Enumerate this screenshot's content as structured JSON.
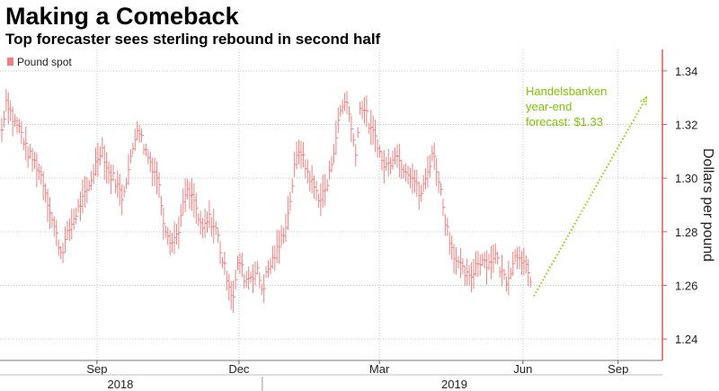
{
  "header": {
    "title": "Making a Comeback",
    "subtitle": "Top forecaster sees sterling rebound in second half"
  },
  "colors": {
    "bar": "#f08080",
    "forecast": "#8ccf00",
    "grid": "#c8c8c8",
    "axis": "#e05a5a"
  },
  "chart_data": {
    "type": "ohlc-bar",
    "legend": [
      "Pound spot"
    ],
    "legend_position": "top-left",
    "ylabel": "Dollars per pound",
    "ylim": [
      1.232,
      1.348
    ],
    "yticks": [
      1.24,
      1.26,
      1.28,
      1.3,
      1.32,
      1.34
    ],
    "ytick_labels": [
      "1.24",
      "1.26",
      "1.28",
      "1.30",
      "1.32",
      "1.34"
    ],
    "xlim_days": [
      0,
      413
    ],
    "xticks": [
      {
        "day": 61,
        "label": "Sep"
      },
      {
        "day": 152,
        "label": "Dec"
      },
      {
        "day": 242,
        "label": "Mar"
      },
      {
        "day": 334,
        "label": "Jun"
      },
      {
        "day": 395,
        "label": "Sep"
      }
    ],
    "year_labels": [
      {
        "day": 76,
        "label": "2018"
      },
      {
        "day": 290,
        "label": "2019"
      }
    ],
    "year_divider_day": 167,
    "x_start_date": "2018-07-01",
    "series": [
      {
        "name": "Pound spot",
        "anchors": [
          [
            0,
            1.318
          ],
          [
            3,
            1.33
          ],
          [
            7,
            1.322
          ],
          [
            12,
            1.318
          ],
          [
            16,
            1.31
          ],
          [
            21,
            1.306
          ],
          [
            26,
            1.3
          ],
          [
            32,
            1.285
          ],
          [
            38,
            1.272
          ],
          [
            44,
            1.282
          ],
          [
            50,
            1.29
          ],
          [
            55,
            1.295
          ],
          [
            60,
            1.305
          ],
          [
            64,
            1.312
          ],
          [
            68,
            1.302
          ],
          [
            72,
            1.3
          ],
          [
            77,
            1.293
          ],
          [
            82,
            1.305
          ],
          [
            87,
            1.32
          ],
          [
            91,
            1.312
          ],
          [
            96,
            1.305
          ],
          [
            100,
            1.3
          ],
          [
            104,
            1.283
          ],
          [
            109,
            1.276
          ],
          [
            113,
            1.28
          ],
          [
            118,
            1.295
          ],
          [
            123,
            1.292
          ],
          [
            128,
            1.28
          ],
          [
            133,
            1.285
          ],
          [
            138,
            1.28
          ],
          [
            141,
            1.27
          ],
          [
            145,
            1.262
          ],
          [
            148,
            1.255
          ],
          [
            152,
            1.27
          ],
          [
            156,
            1.262
          ],
          [
            160,
            1.264
          ],
          [
            164,
            1.265
          ],
          [
            167,
            1.258
          ],
          [
            170,
            1.265
          ],
          [
            174,
            1.27
          ],
          [
            178,
            1.275
          ],
          [
            183,
            1.285
          ],
          [
            188,
            1.305
          ],
          [
            191,
            1.312
          ],
          [
            194,
            1.305
          ],
          [
            199,
            1.298
          ],
          [
            204,
            1.292
          ],
          [
            209,
            1.298
          ],
          [
            214,
            1.315
          ],
          [
            217,
            1.325
          ],
          [
            221,
            1.33
          ],
          [
            224,
            1.318
          ],
          [
            227,
            1.31
          ],
          [
            230,
            1.328
          ],
          [
            233,
            1.325
          ],
          [
            236,
            1.318
          ],
          [
            240,
            1.315
          ],
          [
            244,
            1.305
          ],
          [
            248,
            1.305
          ],
          [
            252,
            1.31
          ],
          [
            256,
            1.305
          ],
          [
            260,
            1.303
          ],
          [
            264,
            1.3
          ],
          [
            268,
            1.293
          ],
          [
            272,
            1.3
          ],
          [
            276,
            1.31
          ],
          [
            280,
            1.3
          ],
          [
            284,
            1.285
          ],
          [
            288,
            1.275
          ],
          [
            292,
            1.268
          ],
          [
            296,
            1.265
          ],
          [
            300,
            1.262
          ],
          [
            304,
            1.268
          ],
          [
            308,
            1.27
          ],
          [
            312,
            1.268
          ],
          [
            316,
            1.272
          ],
          [
            320,
            1.265
          ],
          [
            324,
            1.262
          ],
          [
            328,
            1.27
          ],
          [
            332,
            1.272
          ],
          [
            336,
            1.266
          ],
          [
            340,
            1.258
          ]
        ]
      }
    ],
    "forecast": {
      "label_lines": [
        "Handelsbanken",
        "year-end",
        "forecast: $1.33"
      ],
      "from": [
        341,
        1.256
      ],
      "to": [
        413,
        1.33
      ]
    }
  }
}
